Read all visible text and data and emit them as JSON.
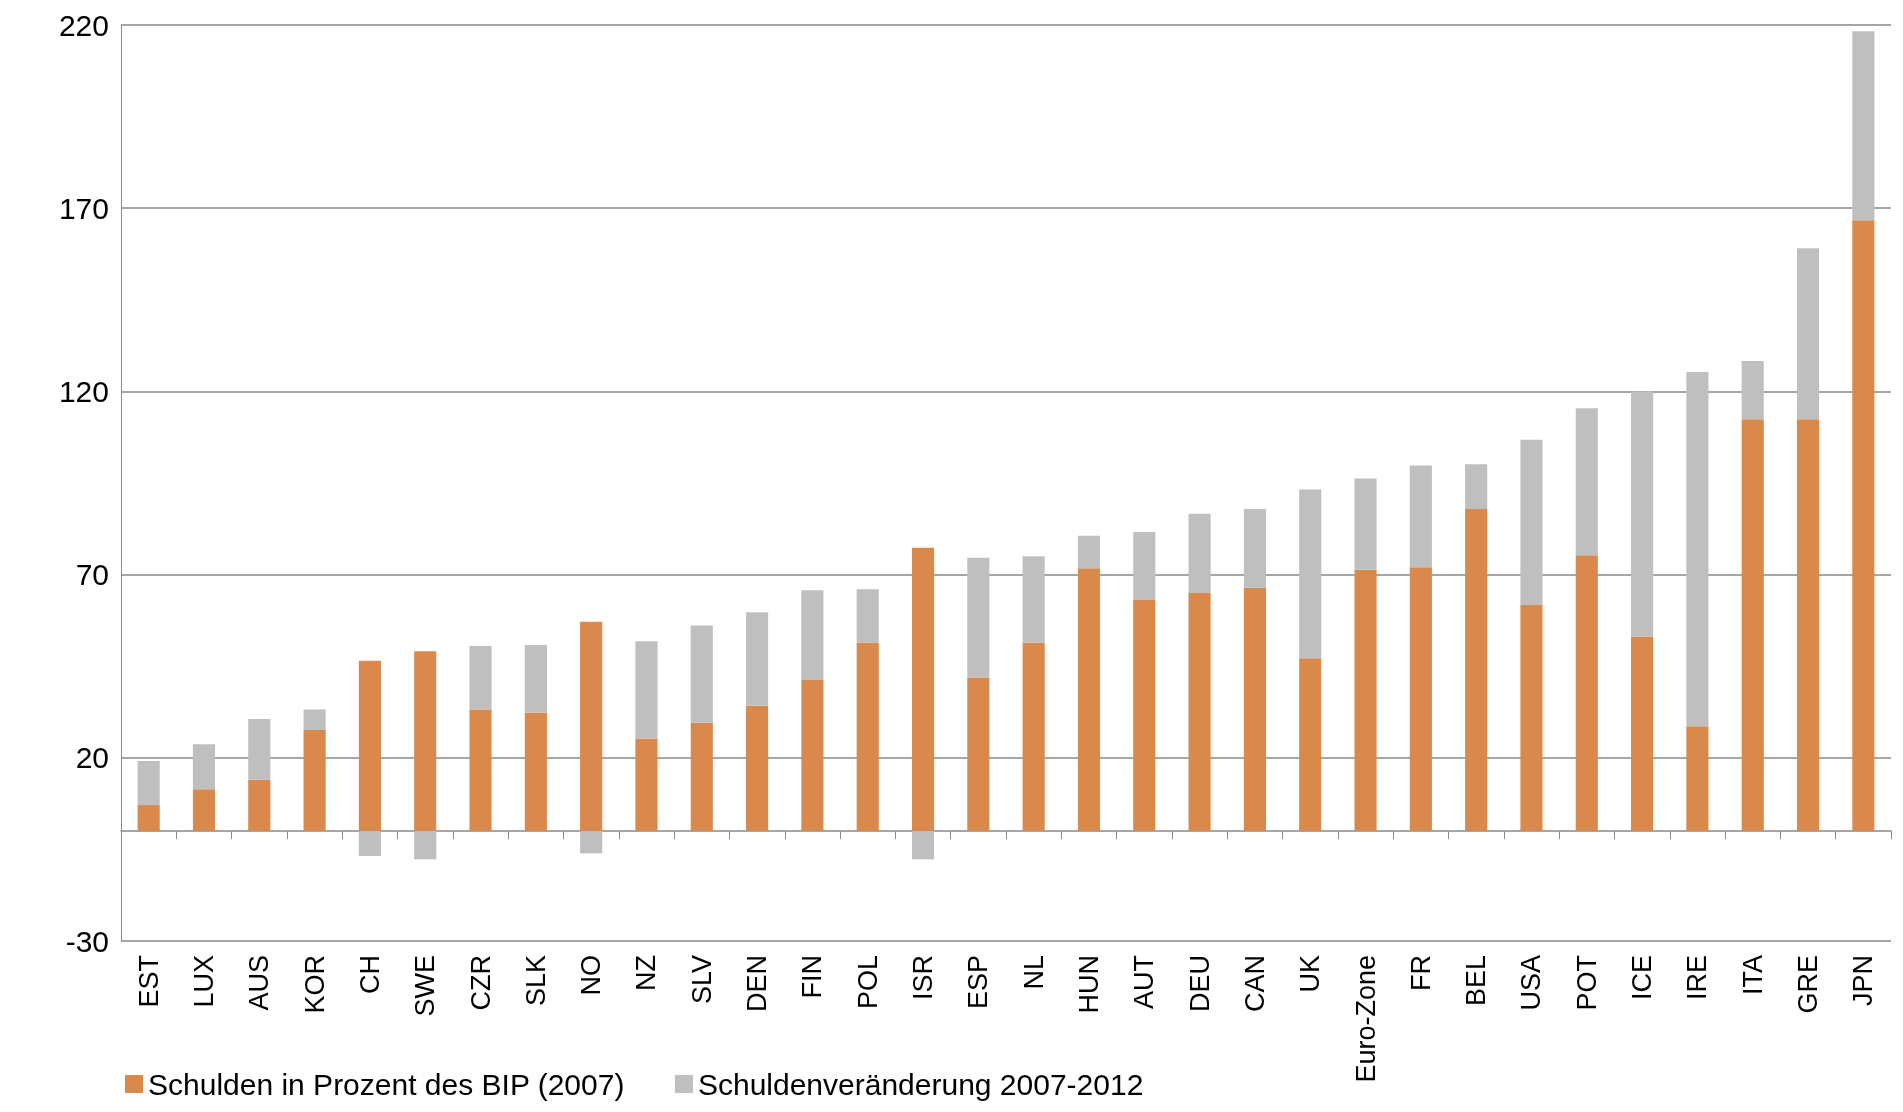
{
  "chart_data": {
    "type": "bar",
    "stacked": true,
    "categories": [
      "EST",
      "LUX",
      "AUS",
      "KOR",
      "CH",
      "SWE",
      "CZR",
      "SLK",
      "NO",
      "NZ",
      "SLV",
      "DEN",
      "FIN",
      "POL",
      "ISR",
      "ESP",
      "NL",
      "HUN",
      "AUT",
      "DEU",
      "CAN",
      "UK",
      "Euro-Zone",
      "FR",
      "BEL",
      "USA",
      "POT",
      "ICE",
      "IRE",
      "ITA",
      "GRE",
      "JPN"
    ],
    "series": [
      {
        "name": "Schulden in Prozent des BIP (2007)",
        "color": "#d9894b",
        "values": [
          7.1,
          11.4,
          14,
          27.6,
          46.5,
          49.1,
          33.2,
          32.3,
          57.1,
          25.3,
          29.6,
          34.2,
          41.2,
          51.5,
          77.3,
          41.9,
          51.5,
          71.7,
          63.1,
          65,
          66.4,
          47.2,
          71.3,
          72,
          87.9,
          61.7,
          75.3,
          53.1,
          28.6,
          112.4,
          112.4,
          166.7
        ]
      },
      {
        "name": "Schuldenveränderung 2007-2012",
        "color": "#bfbfbf",
        "values": [
          12,
          12.3,
          16.6,
          5.6,
          -6.8,
          -7.7,
          17.3,
          18.5,
          -6.1,
          26.5,
          26.5,
          25.5,
          24.5,
          14.5,
          -7.7,
          32.7,
          23.5,
          8.9,
          18.5,
          21.6,
          21.5,
          46,
          24.9,
          27.8,
          12.2,
          45.1,
          40.1,
          66.9,
          96.7,
          15.9,
          46.7,
          51.6
        ]
      }
    ],
    "ylim": [
      -30,
      220
    ],
    "yticks": [
      -30,
      20,
      70,
      120,
      170,
      220
    ],
    "grid": "y",
    "legend": "bottom left"
  }
}
